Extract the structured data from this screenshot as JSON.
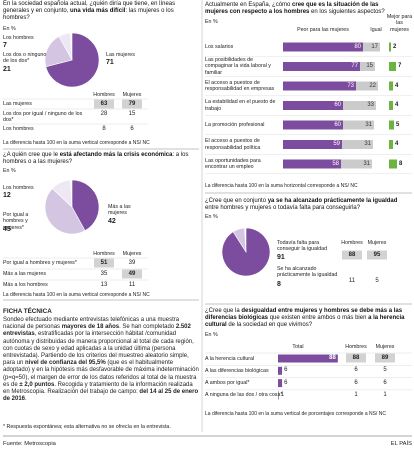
{
  "chart_data": [
    {
      "type": "pie",
      "question": [
        "En la sociedad española actual, ¿quién diría que tiene, en líneas generales y en conjunto, ",
        "una vida más difícil",
        ": las mujeres o los hombres?"
      ],
      "unit": "En %",
      "categories": [
        "Los hombres",
        "Los dos o ninguno de los dos*",
        "Las mujeres"
      ],
      "values": [
        7,
        21,
        71
      ],
      "colors": [
        "#eee8f4",
        "#d4c6e3",
        "#7c4c9e"
      ],
      "table": {
        "columns": [
          "Hombres",
          "Mujeres"
        ],
        "rows": [
          {
            "label": "Las mujeres",
            "values": [
              63,
              79
            ]
          },
          {
            "label": "Los dos por igual / ninguno de los dos*",
            "values": [
              28,
              15
            ]
          },
          {
            "label": "Los hombres",
            "values": [
              8,
              6
            ]
          }
        ]
      },
      "note": "La diferencia hasta 100 en la suma vertical corresponde a NS/ NC"
    },
    {
      "type": "pie",
      "question": [
        "¿A quién cree que le ",
        "está afectando más la crisis económica",
        ": a los hombres o a las mujeres?"
      ],
      "unit": "En %",
      "categories": [
        "Los hombres",
        "Por igual a hombres y mujeres*",
        "Más a las mujeres"
      ],
      "values": [
        12,
        45,
        42
      ],
      "colors": [
        "#eee8f4",
        "#d4c6e3",
        "#7c4c9e"
      ],
      "table": {
        "columns": [
          "Hombres",
          "Mujeres"
        ],
        "rows": [
          {
            "label": "Por igual a hombres y mujeres*",
            "values": [
              51,
              39
            ]
          },
          {
            "label": "Más a las mujeres",
            "values": [
              35,
              49
            ]
          },
          {
            "label": "Más a los hombres",
            "values": [
              13,
              11
            ]
          }
        ]
      },
      "note": "La diferencia hasta 100 en la suma vertical corresponde a NS/ NC"
    },
    {
      "type": "bar",
      "stacked": true,
      "question": [
        "Actualmente en España, ¿cómo ",
        "cree que es la situación de las mujeres con respecto a los hombres",
        " en los siguientes aspectos?"
      ],
      "unit": "En %",
      "categories": [
        "Los salarios",
        "Las posibilidades de compaginar la vida laboral y familiar",
        "El acceso a puestos de responsabilidad en empresas",
        "La estabilidad en el puesto de trabajo",
        "La promoción profesional",
        "El acceso a puestos de responsabilidad política",
        "Las oportunidades para encontrar un empleo"
      ],
      "series": [
        {
          "name": "Peor para las mujeres",
          "color": "#7c4c9e",
          "values": [
            80,
            77,
            73,
            60,
            60,
            59,
            58
          ]
        },
        {
          "name": "Igual",
          "color": "#cbcbcb",
          "values": [
            17,
            15,
            22,
            33,
            31,
            31,
            31
          ]
        },
        {
          "name": "Mejor para las mujeres",
          "color": "#6cb33f",
          "values": [
            2,
            7,
            4,
            4,
            5,
            4,
            8
          ]
        }
      ],
      "note": "La diferencia hasta 100 en la suma horizontal corresponde a NS/ NC"
    },
    {
      "type": "pie",
      "question": [
        "¿Cree que en conjunto ",
        "ya se ha alcanzado prácticamente la igualdad",
        " entre hombres y mujeres o todavía falta para conseguirla?"
      ],
      "unit": "En %",
      "categories": [
        "Todavía falta para conseguir la igualdad",
        "Se ha alcanzado prácticamente la igualdad"
      ],
      "values": [
        91,
        8
      ],
      "colors": [
        "#7c4c9e",
        "#d4c6e3"
      ],
      "table": {
        "columns": [
          "Hombres",
          "Mujeres"
        ],
        "rows": [
          {
            "values": [
              88,
              95
            ]
          },
          {
            "values": [
              11,
              5
            ]
          }
        ]
      }
    },
    {
      "type": "bar",
      "question": [
        "¿Cree que la ",
        "desigualdad entre mujeres y hombres se debe más a las diferencias biológicas",
        " que existen entre ambos o más bien ",
        "a la herencia cultural",
        " de la sociedad en que vivimos?"
      ],
      "unit": "En %",
      "categories": [
        "A la herencia cultural",
        "A las diferencias biológicas",
        "A ambos por igual*",
        "A ninguna de las dos / otra cosa*"
      ],
      "series": [
        {
          "name": "Total",
          "color": "#7c4c9e",
          "values": [
            88,
            6,
            6,
            1
          ]
        }
      ],
      "table": {
        "columns": [
          "Hombres",
          "Mujeres"
        ],
        "rows": [
          {
            "values": [
              88,
              89
            ]
          },
          {
            "values": [
              6,
              5
            ]
          },
          {
            "values": [
              6,
              6
            ]
          },
          {
            "values": [
              1,
              1
            ]
          }
        ]
      },
      "note": "La diferencia hasta 100 en la suma vertical de porcentajes corresponde a NS/ NC"
    }
  ],
  "ficha": {
    "title": "FICHA TÉCNICA",
    "text": [
      "Sondeo efectuado mediante entrevistas telefónicas a una muestra nacional de personas ",
      "mayores de 18 años",
      ". Se han completado ",
      "2.502 entrevistas",
      ", estratificadas por la intersección hábitat /comunidad autónoma y distribuidas de manera proporcional al total de cada región, con cuotas de sexo y edad aplicadas a la unidad última (persona entrevistada). Partiendo de los criterios del muestreo aleatorio simple, para un ",
      "nivel de confianza del 95,5%",
      " (que es el habitualmente adoptado) y en la hipótesis más desfavorable de máxima indeterminación (p=q=50), el margen de error de los datos referidos al total de la muestra es de ",
      "± 2,0 puntos",
      ". Recogida y tratamiento de la información realizada en Metroscopia. Realización del trabajo de campo: ",
      "del 14 al 25 de enero de 2016",
      "."
    ],
    "footnote": "* Respuesta espontánea; esta alternativa no se ofrecía en la entrevista."
  },
  "footer": {
    "source": "Fuente: Metroscopia",
    "brand": "EL PAÍS"
  }
}
